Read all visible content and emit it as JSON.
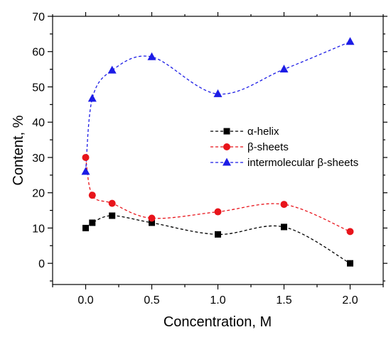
{
  "chart_data": {
    "type": "scatter",
    "xlabel": "Concentration, M",
    "ylabel": "Content, %",
    "xlim": [
      -0.25,
      2.25
    ],
    "ylim": [
      -6,
      70
    ],
    "x_ticks": [
      0.0,
      0.5,
      1.0,
      1.5,
      2.0
    ],
    "x_tick_labels": [
      "0.0",
      "0.5",
      "1.0",
      "1.5",
      "2.0"
    ],
    "y_ticks": [
      0,
      10,
      20,
      30,
      40,
      50,
      60,
      70
    ],
    "y_tick_labels": [
      "0",
      "10",
      "20",
      "30",
      "40",
      "50",
      "60",
      "70"
    ],
    "grid": false,
    "legend_position": "center-right",
    "series": [
      {
        "name": "α-helix",
        "marker": "square",
        "color": "#000000",
        "line_style": "dashed",
        "x": [
          0.0,
          0.05,
          0.2,
          0.5,
          1.0,
          1.5,
          2.0
        ],
        "y": [
          10.0,
          11.5,
          13.5,
          11.5,
          8.2,
          10.3,
          0.0
        ]
      },
      {
        "name": "β-sheets",
        "marker": "circle",
        "color": "#e8141b",
        "line_style": "dashed",
        "x": [
          0.0,
          0.05,
          0.2,
          0.5,
          1.0,
          1.5,
          2.0
        ],
        "y": [
          30.0,
          19.3,
          17.0,
          12.8,
          14.6,
          16.7,
          9.0
        ]
      },
      {
        "name": "intermolecular β-sheets",
        "marker": "triangle",
        "color": "#1c1ce6",
        "line_style": "dashed",
        "x": [
          0.0,
          0.05,
          0.2,
          0.5,
          1.0,
          1.5,
          2.0
        ],
        "y": [
          26.0,
          46.7,
          54.7,
          58.5,
          48.0,
          55.0,
          62.8
        ]
      }
    ]
  }
}
